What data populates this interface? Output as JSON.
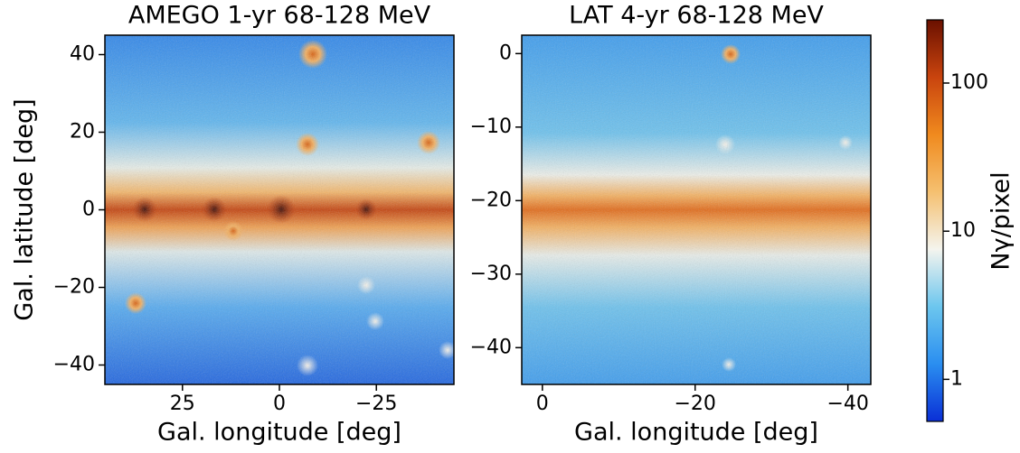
{
  "chart_data": [
    {
      "type": "heatmap",
      "title": "AMEGO 1-yr 68-128 MeV",
      "xlabel": "Gal. longitude [deg]",
      "ylabel": "Gal. latitude [deg]",
      "xlim": [
        45,
        -45
      ],
      "ylim": [
        -45,
        45
      ],
      "xticks": [
        25,
        0,
        {
          "value": -25,
          "label": "−25"
        }
      ],
      "yticks": [
        40,
        20,
        0,
        {
          "value": -20,
          "label": "−20"
        },
        {
          "value": -40,
          "label": "−40"
        }
      ]
    },
    {
      "type": "heatmap",
      "title": "LAT 4-yr 68-128 MeV",
      "xlabel": "Gal. longitude [deg]",
      "xlim": [
        2.7,
        -43
      ],
      "ylim": [
        -45,
        2.5
      ],
      "xticks": [
        0,
        {
          "value": -20,
          "label": "−20"
        },
        {
          "value": -40,
          "label": "−40"
        }
      ],
      "yticks": [
        0,
        {
          "value": -10,
          "label": "−10"
        },
        {
          "value": -20,
          "label": "−20"
        },
        {
          "value": -30,
          "label": "−30"
        },
        {
          "value": -40,
          "label": "−40"
        }
      ]
    }
  ],
  "colorbar": {
    "label": "Nγ/pixel",
    "log_scale": true,
    "lim": [
      0.52,
      267
    ],
    "ticks": [
      1,
      10,
      100
    ],
    "colors": [
      "#0a2fd6",
      "#2a8ef0",
      "#6cc6ee",
      "#f4f4ee",
      "#f5c070",
      "#f08a1e",
      "#c9440e",
      "#6a1000"
    ]
  }
}
